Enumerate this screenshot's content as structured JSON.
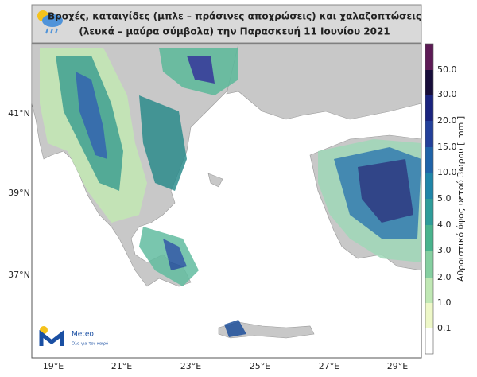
{
  "header": {
    "title_line1": "Βροχές, καταιγίδες (μπλε – πράσινες αποχρώσεις) και χαλαζοπτώσεις",
    "title_line2": "(λευκά – μαύρα σύμβολα) την Παρασκευή 11 Ιουνίου 2021"
  },
  "map": {
    "lat_labels": [
      "41°N",
      "39°N",
      "37°N"
    ],
    "lon_labels": [
      "19°E",
      "21°E",
      "23°E",
      "25°E",
      "27°E",
      "29°E"
    ]
  },
  "colorbar": {
    "title": "Αθροιστικό ύψος υετού 3ωρου [ mm ]",
    "labels": [
      "50.0",
      "30.0",
      "20.0",
      "15.0",
      "10.0",
      "5.0",
      "4.0",
      "3.0",
      "2.0",
      "1.0",
      "0.1"
    ]
  },
  "logo": {
    "name": "Meteo",
    "tagline": "Όλα για τον καιρό"
  }
}
